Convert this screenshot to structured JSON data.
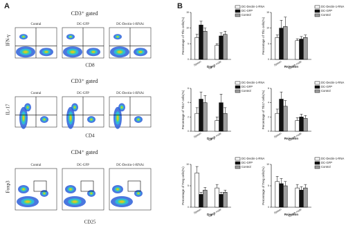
{
  "panel_a": {
    "label": "A",
    "rows": [
      {
        "gate": "CD3⁺ gated",
        "y_marker": "IFN-γ",
        "x_marker": "CD8",
        "plots": [
          "Contral",
          "DC-GFP",
          "DC-Dectin-1-RNAi"
        ]
      },
      {
        "gate": "CD3⁺ gated",
        "y_marker": "IL-17",
        "x_marker": "CD4",
        "plots": [
          "Contral",
          "DC-GFP",
          "DC-Dectin-1-RNAi"
        ]
      },
      {
        "gate": "CD4⁺ gated",
        "y_marker": "Foxp3",
        "x_marker": "CD25",
        "plots": [
          "Contral",
          "DC-GFP",
          "DC-Dectin-1-RNAi"
        ]
      }
    ]
  },
  "panel_b": {
    "label": "B"
  },
  "chart_data": [
    {
      "type": "bar",
      "ylabel": "Percentage of Th1 cells(%)",
      "xlabel": "Day 7",
      "categories": [
        "Spleen",
        "Lymph node"
      ],
      "series": [
        {
          "name": "DC-Dectin-1-RNA",
          "color": "#ffffff",
          "values": [
            7,
            4.5
          ],
          "errors": [
            1,
            0.5
          ]
        },
        {
          "name": "DC-GFP",
          "color": "#111111",
          "values": [
            11,
            7.5
          ],
          "errors": [
            1.2,
            1
          ]
        },
        {
          "name": "Control",
          "color": "#a0a0a0",
          "values": [
            9,
            8
          ],
          "errors": [
            1,
            1
          ]
        }
      ],
      "ylim": [
        0,
        15
      ],
      "yticks": [
        0,
        5,
        10,
        15
      ]
    },
    {
      "type": "bar",
      "ylabel": "Percentage of Th1 cells(%)",
      "xlabel": "Rejection",
      "categories": [
        "Spleen",
        "Lymph node"
      ],
      "series": [
        {
          "name": "DC-Dectin-1-RNA",
          "color": "#ffffff",
          "values": [
            7,
            6
          ],
          "errors": [
            0.8,
            0.6
          ]
        },
        {
          "name": "DC-GFP",
          "color": "#111111",
          "values": [
            10,
            6.5
          ],
          "errors": [
            2.5,
            0.8
          ]
        },
        {
          "name": "Control",
          "color": "#a0a0a0",
          "values": [
            10.5,
            7
          ],
          "errors": [
            3,
            0.8
          ]
        }
      ],
      "ylim": [
        0,
        15
      ],
      "yticks": [
        0,
        5,
        10,
        15
      ]
    },
    {
      "type": "bar",
      "ylabel": "Percentage of Th17 cells(%)",
      "xlabel": "Day 7",
      "categories": [
        "Spleen",
        "Lymph node"
      ],
      "series": [
        {
          "name": "DC-Dectin-1-RNA",
          "color": "#ffffff",
          "values": [
            2.5,
            1.5
          ],
          "errors": [
            0.8,
            0.5
          ]
        },
        {
          "name": "DC-GFP",
          "color": "#111111",
          "values": [
            4.5,
            4
          ],
          "errors": [
            1,
            1.2
          ]
        },
        {
          "name": "Control",
          "color": "#a0a0a0",
          "values": [
            4,
            2.5
          ],
          "errors": [
            1,
            0.8
          ]
        }
      ],
      "ylim": [
        0,
        6
      ],
      "yticks": [
        0,
        2,
        4,
        6
      ]
    },
    {
      "type": "bar",
      "ylabel": "Percentage of Th17 cells(%)",
      "xlabel": "Rejection",
      "categories": [
        "Spleen",
        "Lymph node"
      ],
      "series": [
        {
          "name": "DC-Dectin-1-RNA",
          "color": "#ffffff",
          "values": [
            2.5,
            1.5
          ],
          "errors": [
            0.6,
            0.4
          ]
        },
        {
          "name": "DC-GFP",
          "color": "#111111",
          "values": [
            4.5,
            2
          ],
          "errors": [
            1,
            0.4
          ]
        },
        {
          "name": "Control",
          "color": "#a0a0a0",
          "values": [
            3.5,
            1.8
          ],
          "errors": [
            0.8,
            0.4
          ]
        }
      ],
      "ylim": [
        0,
        6
      ],
      "yticks": [
        0,
        2,
        4,
        6
      ]
    },
    {
      "type": "bar",
      "ylabel": "Percentage of Treg cells(%)",
      "xlabel": "Day 7",
      "categories": [
        "Spleen",
        "Lymph node"
      ],
      "series": [
        {
          "name": "DC-Dectin-1-RNA",
          "color": "#ffffff",
          "values": [
            8,
            4.5
          ],
          "errors": [
            1.5,
            0.8
          ]
        },
        {
          "name": "DC-GFP",
          "color": "#111111",
          "values": [
            3,
            3
          ],
          "errors": [
            0.5,
            0.5
          ]
        },
        {
          "name": "Control",
          "color": "#a0a0a0",
          "values": [
            4,
            3.5
          ],
          "errors": [
            0.6,
            0.5
          ]
        }
      ],
      "ylim": [
        0,
        10
      ],
      "yticks": [
        0,
        5,
        10
      ]
    },
    {
      "type": "bar",
      "ylabel": "Percentage of Treg cells(%)",
      "xlabel": "Rejection",
      "categories": [
        "Spleen",
        "Lymph node"
      ],
      "series": [
        {
          "name": "DC-Dectin-1-RNA",
          "color": "#ffffff",
          "values": [
            6,
            4.5
          ],
          "errors": [
            1.2,
            0.8
          ]
        },
        {
          "name": "DC-GFP",
          "color": "#111111",
          "values": [
            5.5,
            4
          ],
          "errors": [
            1.2,
            0.8
          ]
        },
        {
          "name": "Control",
          "color": "#a0a0a0",
          "values": [
            5,
            4.5
          ],
          "errors": [
            1,
            0.8
          ]
        }
      ],
      "ylim": [
        0,
        10
      ],
      "yticks": [
        0,
        5,
        10
      ]
    }
  ]
}
